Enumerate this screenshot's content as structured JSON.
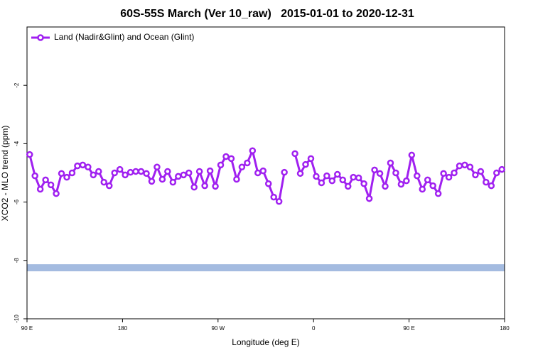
{
  "chart_data": {
    "type": "line",
    "title": "60S-55S March (Ver 10_raw)   2015-01-01 to 2020-12-31",
    "x_label": "Longitude (deg E)",
    "y_label": "XCO2 - MLO trend (ppm)",
    "xlim": [
      90,
      540
    ],
    "ylim": [
      -10,
      0
    ],
    "xticks": [
      {
        "value": 90,
        "label": "90 E"
      },
      180,
      {
        "value": 270,
        "label": "90 W"
      },
      {
        "value": 360,
        "label": "0"
      },
      {
        "value": 450,
        "label": "90 E"
      },
      {
        "value": 540,
        "label": "180"
      }
    ],
    "yticks": [
      -10,
      -8,
      -6,
      -4,
      -2
    ],
    "legend": "top-left",
    "reference_band": {
      "value": -8.25,
      "color": "#a4bbe0"
    },
    "x": [
      92.5,
      97.5,
      102.5,
      107.5,
      112.5,
      117.5,
      122.5,
      127.5,
      132.5,
      137.5,
      142.5,
      147.5,
      152.5,
      157.5,
      162.5,
      167.5,
      172.5,
      177.5,
      182.5,
      187.5,
      192.5,
      197.5,
      202.5,
      207.5,
      212.5,
      217.5,
      222.5,
      227.5,
      232.5,
      237.5,
      242.5,
      247.5,
      252.5,
      257.5,
      262.5,
      267.5,
      272.5,
      277.5,
      282.5,
      287.5,
      292.5,
      297.5,
      302.5,
      307.5,
      312.5,
      317.5,
      322.5,
      327.5,
      332.5,
      337.5,
      342.5,
      347.5,
      352.5,
      357.5,
      362.5,
      367.5,
      372.5,
      377.5,
      382.5,
      387.5,
      392.5,
      397.5,
      402.5,
      407.5,
      412.5,
      417.5,
      422.5,
      427.5,
      432.5,
      437.5,
      442.5,
      447.5,
      452.5,
      457.5,
      462.5,
      467.5,
      472.5,
      477.5,
      482.5,
      487.5,
      492.5,
      497.5,
      502.5,
      507.5,
      512.5,
      517.5,
      522.5,
      527.5,
      532.5,
      537.5
    ],
    "series": [
      {
        "name": "Land (Nadir&Glint) and Ocean (Glint)",
        "color": "#a020f0",
        "values": [
          -4.37,
          -5.1,
          -5.56,
          -5.24,
          -5.41,
          -5.71,
          -5.02,
          -5.15,
          -5.0,
          -4.76,
          -4.73,
          -4.8,
          -5.07,
          -4.95,
          -5.32,
          -5.44,
          -5.0,
          -4.88,
          -5.07,
          -4.98,
          -4.95,
          -4.95,
          -5.02,
          -5.29,
          -4.8,
          -5.22,
          -4.95,
          -5.32,
          -5.12,
          -5.07,
          -5.0,
          -5.49,
          -4.95,
          -5.44,
          -4.93,
          -5.46,
          -4.73,
          -4.44,
          -4.51,
          -5.22,
          -4.8,
          -4.66,
          -4.24,
          -5.0,
          -4.93,
          -5.37,
          -5.83,
          -5.98,
          -4.98,
          null,
          -4.34,
          -5.02,
          -4.71,
          -4.51,
          -5.12,
          -5.34,
          -5.1,
          -5.27,
          -5.05,
          -5.24,
          -5.46,
          -5.15,
          -5.17,
          -5.37,
          -5.88,
          -4.9,
          -5.02,
          -5.46,
          -4.66,
          -5.0,
          -5.39,
          -5.27,
          -4.39,
          -5.1,
          -5.56,
          -5.24,
          -5.44,
          -5.71,
          -5.02,
          -5.15,
          -5.0,
          -4.76,
          -4.73,
          -4.8,
          -5.07,
          -4.95,
          -5.32,
          -5.44,
          -5.0,
          -4.88
        ]
      }
    ]
  }
}
